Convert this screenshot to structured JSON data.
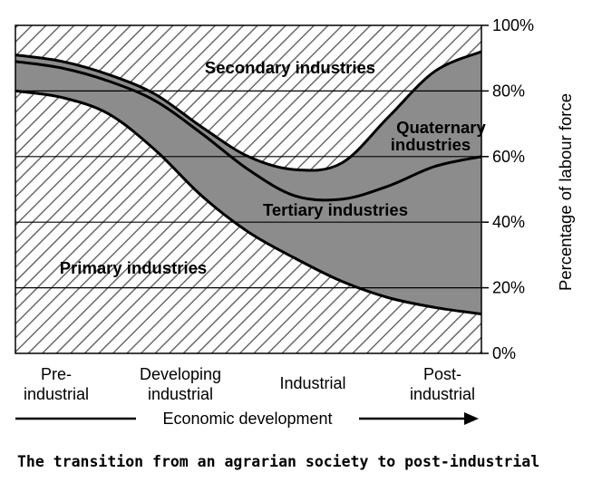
{
  "caption": "The transition from an agrarian society to post-industrial",
  "chart_data": {
    "type": "area",
    "stacked": true,
    "x": [
      "Pre-industrial",
      "Developing industrial",
      "Industrial",
      "Post-industrial"
    ],
    "x_labels": [
      [
        "Pre-",
        "industrial"
      ],
      [
        "Developing",
        "industrial"
      ],
      [
        "Industrial"
      ],
      [
        "Post-",
        "industrial"
      ]
    ],
    "xlabel": "Economic development",
    "ylabel": "Percentage of labour force",
    "ylim": [
      0,
      100
    ],
    "yticks": [
      "0%",
      "20%",
      "40%",
      "60%",
      "80%",
      "100%"
    ],
    "grid": true,
    "boundaries_x": [
      0,
      0.1,
      0.2,
      0.3,
      0.4,
      0.5,
      0.6,
      0.7,
      0.8,
      0.9,
      1.0
    ],
    "boundaries": {
      "primary_top": [
        80,
        78,
        73,
        62,
        48,
        37,
        29,
        22,
        17,
        14,
        12
      ],
      "tertiary_top": [
        89,
        87,
        83,
        77,
        67,
        56,
        48,
        47,
        51,
        57,
        60
      ],
      "quaternary_top": [
        91,
        89,
        85,
        79,
        69,
        60,
        56,
        58,
        72,
        86,
        92
      ]
    },
    "series": [
      {
        "name": "Primary industries",
        "fill": "hatch"
      },
      {
        "name": "Tertiary industries",
        "fill": "grey"
      },
      {
        "name": "Quaternary industries",
        "fill": "grey"
      },
      {
        "name": "Secondary industries",
        "fill": "hatch"
      }
    ],
    "colors": {
      "grey": "#8c8c8c",
      "hatch_stroke": "#6a6a6a",
      "line": "#000000"
    }
  }
}
